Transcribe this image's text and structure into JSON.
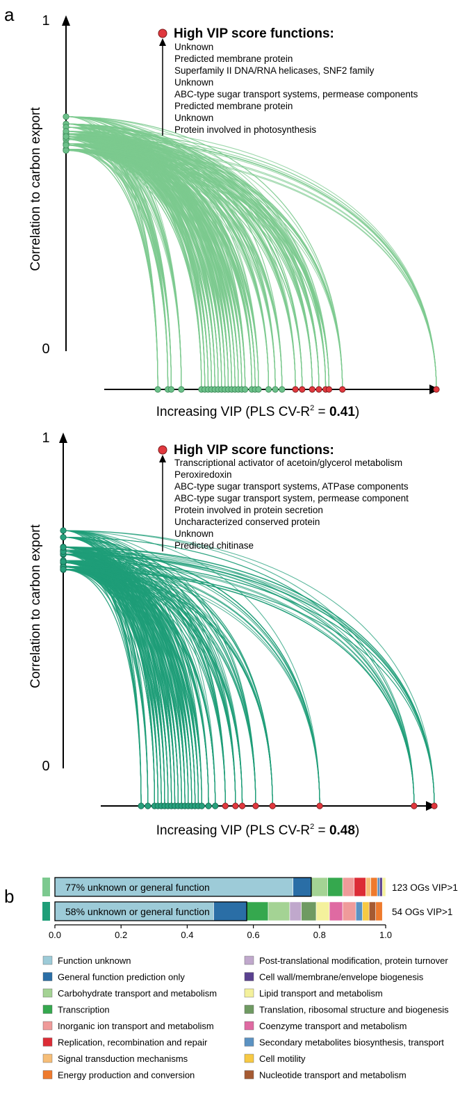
{
  "panel_a_label": "a",
  "panel_b_label": "b",
  "colors": {
    "arc_top": "#7cc98f",
    "node_top": "#6cc08a",
    "arc_bottom": "#1f9e78",
    "node_bottom": "#27a07c",
    "high_vip": "#e0383e",
    "axis": "#000000"
  },
  "chart_data": [
    {
      "type": "arc-diagram",
      "ylabel": "Correlation to carbon export",
      "y_ticks": [
        "1",
        "0"
      ],
      "xlabel_prefix": "Increasing VIP (PLS CV-R",
      "xlabel_sup": "2",
      "xlabel_mid": " = ",
      "xlabel_value": "0.41",
      "xlabel_suffix": ")",
      "legend_title": "High VIP score functions:",
      "high_vip_functions": [
        "Unknown",
        "Predicted membrane protein",
        "Superfamily II DNA/RNA helicases, SNF2 family",
        "Unknown",
        "ABC-type sugar transport systems, permease components",
        "Predicted membrane protein",
        "Unknown",
        "Protein involved in photosynthesis"
      ],
      "correlation_range": [
        0.6,
        0.7
      ],
      "max_correlation": 0.71,
      "vip_nodes_green": [
        0.17,
        0.2,
        0.21,
        0.24,
        0.3,
        0.31,
        0.32,
        0.33,
        0.34,
        0.35,
        0.36,
        0.37,
        0.38,
        0.39,
        0.4,
        0.41,
        0.42,
        0.43,
        0.45,
        0.46,
        0.47,
        0.5,
        0.52,
        0.54
      ],
      "vip_nodes_red": [
        0.58,
        0.6,
        0.63,
        0.65,
        0.67,
        0.68,
        0.72,
        1.0
      ]
    },
    {
      "type": "arc-diagram",
      "ylabel": "Correlation to carbon export",
      "y_ticks": [
        "1",
        "0"
      ],
      "xlabel_prefix": "Increasing VIP (PLS CV-R",
      "xlabel_sup": "2",
      "xlabel_mid": " = ",
      "xlabel_value": "0.48",
      "xlabel_suffix": ")",
      "legend_title": "High VIP score functions:",
      "high_vip_functions": [
        "Transcriptional activator of acetoin/glycerol metabolism",
        "Peroxiredoxin",
        "ABC-type sugar transport systems, ATPase components",
        "ABC-type sugar transport system, permease component",
        "Protein involved in protein secretion",
        "Uncharacterized conserved protein",
        "Unknown",
        "Predicted chitinase"
      ],
      "correlation_range": [
        0.6,
        0.7
      ],
      "max_correlation": 0.72,
      "vip_nodes_green": [
        0.13,
        0.15,
        0.17,
        0.18,
        0.19,
        0.2,
        0.21,
        0.22,
        0.23,
        0.24,
        0.25,
        0.26,
        0.27,
        0.28,
        0.29,
        0.3,
        0.31,
        0.33,
        0.35
      ],
      "vip_nodes_red": [
        0.38,
        0.41,
        0.43,
        0.47,
        0.52,
        0.66,
        0.94,
        1.0
      ]
    },
    {
      "type": "stacked-bar",
      "x_ticks": [
        "0.0",
        "0.2",
        "0.4",
        "0.6",
        "0.8",
        "1.0"
      ],
      "xlim": [
        0,
        1
      ],
      "bars": [
        {
          "swatch_color": "#7cc98f",
          "label": "123 OGs VIP>1",
          "inner_text": "77% unknown or general function",
          "segments": [
            {
              "category": "Function unknown",
              "value": 0.72
            },
            {
              "category": "General function prediction only",
              "value": 0.055
            },
            {
              "category": "Carbohydrate transport and metabolism",
              "value": 0.05
            },
            {
              "category": "Transcription",
              "value": 0.045
            },
            {
              "category": "Inorganic ion transport and metabolism",
              "value": 0.035
            },
            {
              "category": "Replication, recombination and repair",
              "value": 0.035
            },
            {
              "category": "Signal transduction mechanisms",
              "value": 0.015
            },
            {
              "category": "Energy production and conversion",
              "value": 0.02
            },
            {
              "category": "Secondary metabolites biosynthesis, transport",
              "value": 0.007
            },
            {
              "category": "Cell wall/membrane/envelope biogenesis",
              "value": 0.008
            },
            {
              "category": "Lipid transport and metabolism",
              "value": 0.01
            }
          ]
        },
        {
          "swatch_color": "#1f9e78",
          "label": "54 OGs VIP>1",
          "inner_text": "58% unknown or general function",
          "segments": [
            {
              "category": "Function unknown",
              "value": 0.48
            },
            {
              "category": "General function prediction only",
              "value": 0.1
            },
            {
              "category": "Transcription",
              "value": 0.065
            },
            {
              "category": "Carbohydrate transport and metabolism",
              "value": 0.065
            },
            {
              "category": "Post-translational modification, protein turnover",
              "value": 0.035
            },
            {
              "category": "Translation, ribosomal structure and biogenesis",
              "value": 0.045
            },
            {
              "category": "Lipid transport and metabolism",
              "value": 0.04
            },
            {
              "category": "Coenzyme transport and metabolism",
              "value": 0.04
            },
            {
              "category": "Inorganic ion transport and metabolism",
              "value": 0.04
            },
            {
              "category": "Secondary metabolites biosynthesis, transport",
              "value": 0.02
            },
            {
              "category": "Cell motility",
              "value": 0.02
            },
            {
              "category": "Nucleotide transport and metabolism",
              "value": 0.02
            },
            {
              "category": "Energy production and conversion",
              "value": 0.02
            }
          ]
        }
      ],
      "legend": [
        {
          "name": "Function unknown",
          "color": "#9dcbd8"
        },
        {
          "name": "General function prediction only",
          "color": "#2a6ea6"
        },
        {
          "name": "Carbohydrate transport and metabolism",
          "color": "#a4d394"
        },
        {
          "name": "Transcription",
          "color": "#35a84e"
        },
        {
          "name": "Inorganic ion transport and metabolism",
          "color": "#ef9b9a"
        },
        {
          "name": "Replication, recombination and repair",
          "color": "#dc2c36"
        },
        {
          "name": "Signal transduction mechanisms",
          "color": "#f6be78"
        },
        {
          "name": "Energy production and conversion",
          "color": "#ee7a2d"
        },
        {
          "name": "Post-translational modification, protein turnover",
          "color": "#c0a8cc"
        },
        {
          "name": "Cell wall/membrane/envelope biogenesis",
          "color": "#5a4190"
        },
        {
          "name": "Lipid transport and metabolism",
          "color": "#f4f19c"
        },
        {
          "name": "Translation, ribosomal structure and biogenesis",
          "color": "#6f9a62"
        },
        {
          "name": "Coenzyme transport and metabolism",
          "color": "#df6aa2"
        },
        {
          "name": "Secondary metabolites biosynthesis, transport",
          "color": "#5b92c2"
        },
        {
          "name": "Cell motility",
          "color": "#f7c944"
        },
        {
          "name": "Nucleotide transport and metabolism",
          "color": "#a55a32"
        }
      ]
    }
  ]
}
